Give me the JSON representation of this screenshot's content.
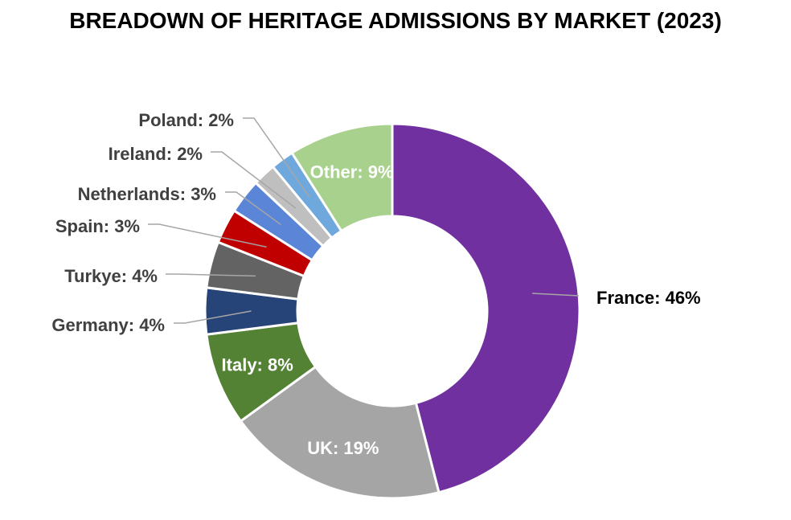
{
  "chart_data": {
    "type": "pie",
    "variant": "donut",
    "title": "BREADOWN OF HERITAGE ADMISSIONS BY MARKET (2023)",
    "legend": "none",
    "slices": [
      {
        "label": "France",
        "value": 46,
        "display": "France: 46%",
        "color": "#7030A0",
        "label_position": "outside",
        "label_color": "#000000"
      },
      {
        "label": "UK",
        "value": 19,
        "display": "UK: 19%",
        "color": "#A5A5A5",
        "label_position": "inside",
        "label_color": "#FFFFFF"
      },
      {
        "label": "Italy",
        "value": 8,
        "display": "Italy: 8%",
        "color": "#548235",
        "label_position": "inside",
        "label_color": "#FFFFFF"
      },
      {
        "label": "Germany",
        "value": 4,
        "display": "Germany: 4%",
        "color": "#264478",
        "label_position": "outside",
        "label_color": "#404040"
      },
      {
        "label": "Turkye",
        "value": 4,
        "display": "Turkye: 4%",
        "color": "#636363",
        "label_position": "outside",
        "label_color": "#404040"
      },
      {
        "label": "Spain",
        "value": 3,
        "display": "Spain: 3%",
        "color": "#C00000",
        "label_position": "outside",
        "label_color": "#404040"
      },
      {
        "label": "Netherlands",
        "value": 3,
        "display": "Netherlands: 3%",
        "color": "#5B85D6",
        "label_position": "outside",
        "label_color": "#404040"
      },
      {
        "label": "Ireland",
        "value": 2,
        "display": "Ireland: 2%",
        "color": "#BFBFBF",
        "label_position": "outside",
        "label_color": "#404040"
      },
      {
        "label": "Poland",
        "value": 2,
        "display": "Poland: 2%",
        "color": "#6FA8DC",
        "label_position": "outside",
        "label_color": "#404040"
      },
      {
        "label": "Other",
        "value": 9,
        "display": "Other: 9%",
        "color": "#A9D18E",
        "label_position": "inside",
        "label_color": "#FFFFFF"
      }
    ]
  }
}
